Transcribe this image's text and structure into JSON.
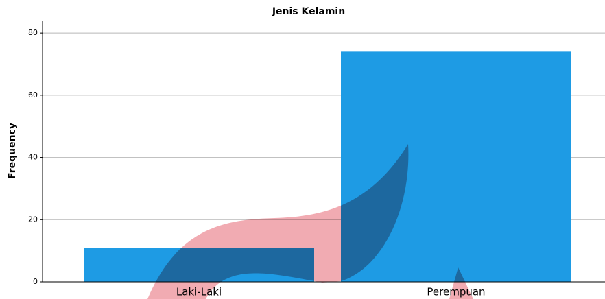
{
  "chart_data": {
    "type": "bar",
    "title": "Jenis Kelamin",
    "y_label": "Frequency",
    "categories": [
      "Laki-Laki",
      "Perempuan"
    ],
    "values": [
      11,
      74
    ],
    "color": "#1e9be4",
    "ylim": [
      0,
      84
    ],
    "yticks": [
      0,
      20,
      40,
      60,
      80
    ],
    "grid": true
  }
}
